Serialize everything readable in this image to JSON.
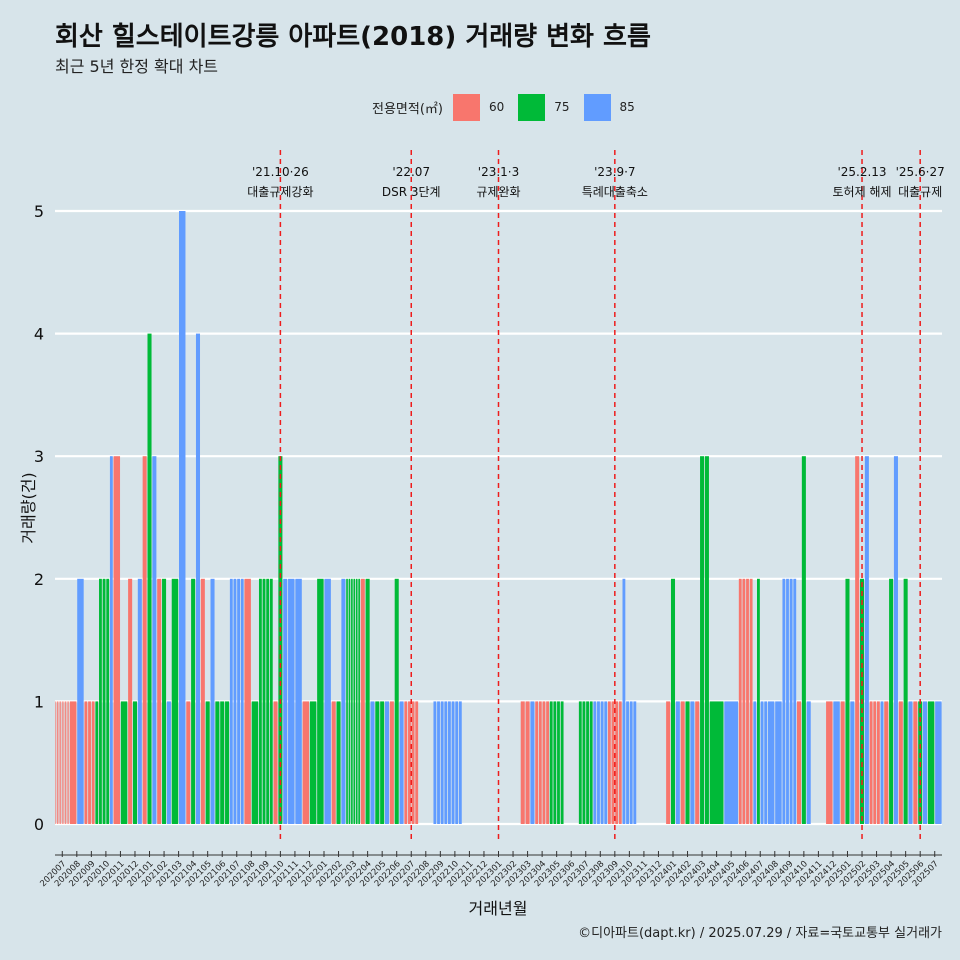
{
  "title": "회산 힐스테이트강릉 아파트(2018) 거래량 변화 흐름",
  "subtitle": "최근 5년 한정 확대 차트",
  "caption": "©디아파트(dapt.kr) / 2025.07.29 / 자료=국토교통부 실거래가",
  "colors": {
    "60": "#f8766d",
    "75": "#00ba38",
    "85": "#619cff",
    "event_line": "#ee1c1c",
    "background": "#d7e4ea",
    "grid": "#ffffff"
  },
  "chart_data": {
    "type": "bar",
    "title": "회산 힐스테이트강릉 아파트(2018) 거래량 변화 흐름",
    "subtitle": "최근 5년 한정 확대 차트",
    "xlabel": "거래년월",
    "ylabel": "거래량(건)",
    "ylim": [
      0,
      5
    ],
    "yticks": [
      0,
      1,
      2,
      3,
      4,
      5
    ],
    "grid": "horizontal",
    "legend_title": "전용면적(㎡)",
    "legend_position": "top",
    "series_names": [
      "60",
      "75",
      "85"
    ],
    "categories": [
      "202007",
      "202008",
      "202009",
      "202010",
      "202011",
      "202012",
      "202101",
      "202102",
      "202103",
      "202104",
      "202105",
      "202106",
      "202107",
      "202108",
      "202109",
      "202110",
      "202111",
      "202112",
      "202201",
      "202202",
      "202203",
      "202204",
      "202205",
      "202206",
      "202207",
      "202208",
      "202209",
      "202210",
      "202211",
      "202212",
      "202301",
      "202302",
      "202303",
      "202304",
      "202305",
      "202306",
      "202307",
      "202308",
      "202309",
      "202310",
      "202311",
      "202312",
      "202401",
      "202402",
      "202403",
      "202404",
      "202405",
      "202406",
      "202407",
      "202408",
      "202409",
      "202410",
      "202411",
      "202412",
      "202501",
      "202502",
      "202503",
      "202504",
      "202505",
      "202506",
      "202507"
    ],
    "bars": [
      {
        "c": 0,
        "area": "60",
        "values": [
          1,
          1,
          1,
          1,
          1,
          1,
          1,
          1,
          1
        ]
      },
      {
        "c": 1,
        "area": "60",
        "values": [
          1
        ]
      },
      {
        "c": 1,
        "area": "85",
        "values": [
          2
        ]
      },
      {
        "c": 2,
        "area": "60",
        "values": [
          1,
          1,
          1
        ]
      },
      {
        "c": 2,
        "area": "75",
        "values": [
          1
        ]
      },
      {
        "c": 3,
        "area": "75",
        "values": [
          2,
          2,
          2
        ]
      },
      {
        "c": 3,
        "area": "85",
        "values": [
          3
        ]
      },
      {
        "c": 4,
        "area": "60",
        "values": [
          3
        ]
      },
      {
        "c": 4,
        "area": "75",
        "values": [
          1
        ]
      },
      {
        "c": 5,
        "area": "60",
        "values": [
          2
        ]
      },
      {
        "c": 5,
        "area": "75",
        "values": [
          1
        ]
      },
      {
        "c": 5,
        "area": "85",
        "values": [
          2
        ]
      },
      {
        "c": 6,
        "area": "60",
        "values": [
          3
        ]
      },
      {
        "c": 6,
        "area": "75",
        "values": [
          4
        ]
      },
      {
        "c": 6,
        "area": "85",
        "values": [
          3
        ]
      },
      {
        "c": 7,
        "area": "60",
        "values": [
          2
        ]
      },
      {
        "c": 7,
        "area": "75",
        "values": [
          2
        ]
      },
      {
        "c": 7,
        "area": "85",
        "values": [
          1
        ]
      },
      {
        "c": 8,
        "area": "75",
        "values": [
          2
        ]
      },
      {
        "c": 8,
        "area": "85",
        "values": [
          5
        ]
      },
      {
        "c": 9,
        "area": "60",
        "values": [
          1
        ]
      },
      {
        "c": 9,
        "area": "75",
        "values": [
          2
        ]
      },
      {
        "c": 9,
        "area": "85",
        "values": [
          4
        ]
      },
      {
        "c": 10,
        "area": "60",
        "values": [
          2
        ]
      },
      {
        "c": 10,
        "area": "75",
        "values": [
          1
        ]
      },
      {
        "c": 10,
        "area": "85",
        "values": [
          2
        ]
      },
      {
        "c": 11,
        "area": "75",
        "values": [
          1,
          1,
          1
        ]
      },
      {
        "c": 12,
        "area": "85",
        "values": [
          2,
          2,
          2,
          2
        ]
      },
      {
        "c": 13,
        "area": "60",
        "values": [
          2
        ]
      },
      {
        "c": 13,
        "area": "75",
        "values": [
          1
        ]
      },
      {
        "c": 14,
        "area": "75",
        "values": [
          2,
          2,
          2,
          2
        ]
      },
      {
        "c": 15,
        "area": "60",
        "values": [
          1
        ]
      },
      {
        "c": 15,
        "area": "75",
        "values": [
          3
        ]
      },
      {
        "c": 15,
        "area": "85",
        "values": [
          2
        ]
      },
      {
        "c": 16,
        "area": "85",
        "values": [
          2,
          2
        ]
      },
      {
        "c": 17,
        "area": "60",
        "values": [
          1
        ]
      },
      {
        "c": 17,
        "area": "75",
        "values": [
          1
        ]
      },
      {
        "c": 18,
        "area": "75",
        "values": [
          2
        ]
      },
      {
        "c": 18,
        "area": "85",
        "values": [
          2
        ]
      },
      {
        "c": 19,
        "area": "60",
        "values": [
          1
        ]
      },
      {
        "c": 19,
        "area": "75",
        "values": [
          1
        ]
      },
      {
        "c": 19,
        "area": "85",
        "values": [
          2
        ]
      },
      {
        "c": 20,
        "area": "75",
        "values": [
          2,
          2,
          2,
          2,
          2,
          2
        ]
      },
      {
        "c": 21,
        "area": "60",
        "values": [
          2
        ]
      },
      {
        "c": 21,
        "area": "75",
        "values": [
          2
        ]
      },
      {
        "c": 21,
        "area": "85",
        "values": [
          1
        ]
      },
      {
        "c": 22,
        "area": "75",
        "values": [
          1,
          1
        ]
      },
      {
        "c": 22,
        "area": "85",
        "values": [
          1
        ]
      },
      {
        "c": 23,
        "area": "60",
        "values": [
          1
        ]
      },
      {
        "c": 23,
        "area": "75",
        "values": [
          2
        ]
      },
      {
        "c": 23,
        "area": "85",
        "values": [
          1
        ]
      },
      {
        "c": 24,
        "area": "60",
        "values": [
          1,
          1,
          1,
          1
        ]
      },
      {
        "c": 26,
        "area": "85",
        "values": [
          1,
          1,
          1,
          1
        ]
      },
      {
        "c": 27,
        "area": "85",
        "values": [
          1,
          1,
          1,
          1
        ]
      },
      {
        "c": 32,
        "area": "60",
        "values": [
          1,
          1
        ]
      },
      {
        "c": 32,
        "area": "85",
        "values": [
          1
        ]
      },
      {
        "c": 33,
        "area": "60",
        "values": [
          1,
          1,
          1,
          1
        ]
      },
      {
        "c": 34,
        "area": "75",
        "values": [
          1,
          1,
          1,
          1
        ]
      },
      {
        "c": 36,
        "area": "75",
        "values": [
          1,
          1,
          1,
          1
        ]
      },
      {
        "c": 37,
        "area": "85",
        "values": [
          1,
          1,
          1,
          1
        ]
      },
      {
        "c": 38,
        "area": "60",
        "values": [
          1,
          1,
          1,
          1
        ]
      },
      {
        "c": 39,
        "area": "85",
        "values": [
          2
        ]
      },
      {
        "c": 39,
        "area": "85",
        "values": [
          1,
          1,
          1
        ]
      },
      {
        "c": 42,
        "area": "60",
        "values": [
          1
        ]
      },
      {
        "c": 42,
        "area": "75",
        "values": [
          2
        ]
      },
      {
        "c": 42,
        "area": "85",
        "values": [
          1
        ]
      },
      {
        "c": 43,
        "area": "60",
        "values": [
          1
        ]
      },
      {
        "c": 43,
        "area": "75",
        "values": [
          1
        ]
      },
      {
        "c": 43,
        "area": "85",
        "values": [
          1
        ]
      },
      {
        "c": 44,
        "area": "60",
        "values": [
          1
        ]
      },
      {
        "c": 44,
        "area": "75",
        "values": [
          3,
          3
        ]
      },
      {
        "c": 45,
        "area": "75",
        "values": [
          1
        ]
      },
      {
        "c": 46,
        "area": "85",
        "values": [
          1
        ]
      },
      {
        "c": 47,
        "area": "60",
        "values": [
          2,
          2,
          2,
          2
        ]
      },
      {
        "c": 48,
        "area": "85",
        "values": [
          1
        ]
      },
      {
        "c": 48,
        "area": "75",
        "values": [
          2
        ]
      },
      {
        "c": 48,
        "area": "85",
        "values": [
          1,
          1
        ]
      },
      {
        "c": 49,
        "area": "85",
        "values": [
          1,
          1
        ]
      },
      {
        "c": 50,
        "area": "85",
        "values": [
          2,
          2,
          2,
          2
        ]
      },
      {
        "c": 51,
        "area": "60",
        "values": [
          1
        ]
      },
      {
        "c": 51,
        "area": "75",
        "values": [
          3
        ]
      },
      {
        "c": 51,
        "area": "85",
        "values": [
          1
        ]
      },
      {
        "c": 53,
        "area": "60",
        "values": [
          1
        ]
      },
      {
        "c": 53,
        "area": "85",
        "values": [
          1
        ]
      },
      {
        "c": 54,
        "area": "60",
        "values": [
          1
        ]
      },
      {
        "c": 54,
        "area": "75",
        "values": [
          2
        ]
      },
      {
        "c": 54,
        "area": "85",
        "values": [
          1
        ]
      },
      {
        "c": 55,
        "area": "60",
        "values": [
          3
        ]
      },
      {
        "c": 55,
        "area": "75",
        "values": [
          2
        ]
      },
      {
        "c": 55,
        "area": "85",
        "values": [
          3
        ]
      },
      {
        "c": 56,
        "area": "60",
        "values": [
          1,
          1,
          1
        ]
      },
      {
        "c": 56,
        "area": "85",
        "values": [
          1
        ]
      },
      {
        "c": 57,
        "area": "60",
        "values": [
          1
        ]
      },
      {
        "c": 57,
        "area": "75",
        "values": [
          2
        ]
      },
      {
        "c": 57,
        "area": "85",
        "values": [
          3
        ]
      },
      {
        "c": 58,
        "area": "60",
        "values": [
          1
        ]
      },
      {
        "c": 58,
        "area": "75",
        "values": [
          2
        ]
      },
      {
        "c": 58,
        "area": "85",
        "values": [
          1
        ]
      },
      {
        "c": 59,
        "area": "60",
        "values": [
          1
        ]
      },
      {
        "c": 59,
        "area": "75",
        "values": [
          1
        ]
      },
      {
        "c": 59,
        "area": "85",
        "values": [
          1
        ]
      },
      {
        "c": 60,
        "area": "75",
        "values": [
          1
        ]
      },
      {
        "c": 60,
        "area": "85",
        "values": [
          1
        ]
      }
    ],
    "events": [
      {
        "category": "202110",
        "date": "'21.10·26",
        "label": "대출규제강화"
      },
      {
        "category": "202207",
        "date": "'22.07",
        "label": "DSR 3단계"
      },
      {
        "category": "202301",
        "date": "'23.1·3",
        "label": "규제완화"
      },
      {
        "category": "202309",
        "date": "'23.9·7",
        "label": "특례대출축소"
      },
      {
        "category": "202502",
        "date": "'25.2.13",
        "label": "토허제 해제"
      },
      {
        "category": "202506",
        "date": "'25.6·27",
        "label": "대출규제"
      }
    ]
  }
}
